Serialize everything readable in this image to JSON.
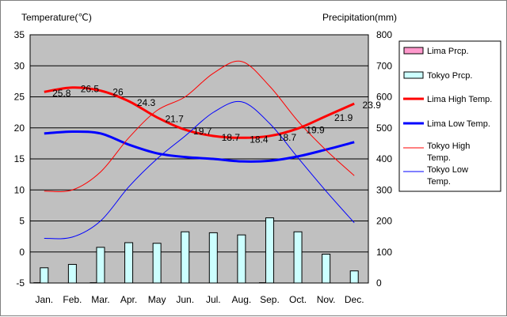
{
  "chart_data": {
    "type": "line",
    "title": "",
    "y_left_label": "Temperature(℃)",
    "y_right_label": "Precipitation(mm)",
    "y_left_range": [
      -5,
      35
    ],
    "y_left_ticks": [
      "35",
      "30",
      "25",
      "20",
      "15",
      "10",
      "5",
      "0",
      "-5"
    ],
    "y_right_range": [
      0,
      800
    ],
    "y_right_ticks": [
      "800",
      "700",
      "600",
      "500",
      "400",
      "300",
      "200",
      "100",
      "0"
    ],
    "grid": "horizontal",
    "legend_position": "right",
    "categories": [
      "Jan.",
      "Feb.",
      "Mar.",
      "Apr.",
      "May",
      "Jun.",
      "Jul.",
      "Aug.",
      "Sep.",
      "Oct.",
      "Nov.",
      "Dec."
    ],
    "series": [
      {
        "name": "Lima Prcp.",
        "type": "bar",
        "axis": "right",
        "color": "#ff99cc",
        "values": [
          1,
          0,
          1,
          0,
          0,
          0,
          0,
          0,
          1,
          0,
          0,
          0
        ]
      },
      {
        "name": "Tokyo Prcp.",
        "type": "bar",
        "axis": "right",
        "color": "#ccffff",
        "values": [
          49,
          60,
          115,
          130,
          128,
          165,
          162,
          155,
          210,
          165,
          93,
          39
        ]
      },
      {
        "name": "Lima High Temp.",
        "type": "line",
        "axis": "left",
        "color": "#ff0000",
        "width": 3,
        "labels": true,
        "values": [
          25.8,
          26.5,
          26,
          24.3,
          21.7,
          19.7,
          18.7,
          18.4,
          18.7,
          19.9,
          21.9,
          23.9
        ]
      },
      {
        "name": "Lima Low Temp.",
        "type": "line",
        "axis": "left",
        "color": "#0000ff",
        "width": 3,
        "labels": false,
        "values": [
          19.1,
          19.4,
          19.1,
          17.3,
          15.9,
          15.3,
          15.0,
          14.6,
          14.7,
          15.4,
          16.5,
          17.7
        ]
      },
      {
        "name": "Tokyo High Temp.",
        "type": "line",
        "axis": "left",
        "color": "#ff0000",
        "width": 1,
        "labels": false,
        "values": [
          9.8,
          10.0,
          12.9,
          18.4,
          22.8,
          25.0,
          28.8,
          30.7,
          26.7,
          21.1,
          16.4,
          12.3
        ]
      },
      {
        "name": "Tokyo Low Temp.",
        "type": "line",
        "axis": "left",
        "color": "#0000ff",
        "width": 1,
        "labels": false,
        "values": [
          2.2,
          2.4,
          5.0,
          10.5,
          15.0,
          18.7,
          22.5,
          24.2,
          20.7,
          15.2,
          9.8,
          4.7
        ]
      }
    ],
    "legend": [
      {
        "text": "Lima Prcp.",
        "kind": "box",
        "color": "#ff99cc"
      },
      {
        "text": "Tokyo Prcp.",
        "kind": "box",
        "color": "#ccffff"
      },
      {
        "text": "Lima High Temp.",
        "kind": "thick",
        "color": "#ff0000"
      },
      {
        "text": "Lima Low Temp.",
        "kind": "thick",
        "color": "#0000ff"
      },
      {
        "text": "Tokyo High Temp.",
        "kind": "thin",
        "color": "#ff0000"
      },
      {
        "text": "Tokyo Low Temp.",
        "kind": "thin",
        "color": "#0000ff"
      }
    ]
  }
}
